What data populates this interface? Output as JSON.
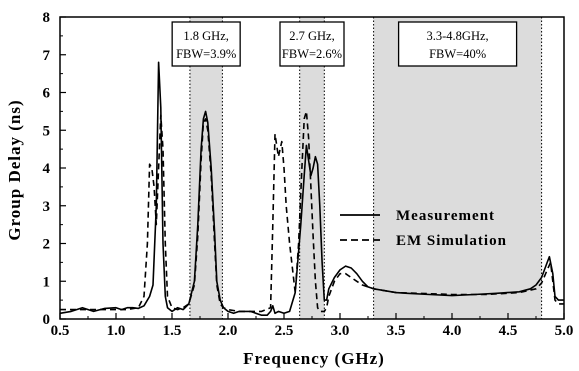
{
  "chart_data": {
    "type": "line",
    "xlabel": "Frequency (GHz)",
    "ylabel": "Group Delay (ns)",
    "xlim": [
      0.5,
      5.0
    ],
    "ylim": [
      0,
      8
    ],
    "xticks": [
      "0.5",
      "1.0",
      "1.5",
      "2.0",
      "2.5",
      "3.0",
      "3.5",
      "4.0",
      "4.5",
      "5.0"
    ],
    "yticks": [
      "0",
      "1",
      "2",
      "3",
      "4",
      "5",
      "6",
      "7",
      "8"
    ],
    "grid": false,
    "legend_position": "right",
    "passbands": [
      {
        "range": [
          1.66,
          1.95
        ],
        "label_line1": "1.8 GHz,",
        "label_line2": "FBW=3.9%"
      },
      {
        "range": [
          2.64,
          2.86
        ],
        "label_line1": "2.7 GHz,",
        "label_line2": "FBW=2.6%"
      },
      {
        "range": [
          3.3,
          4.8
        ],
        "label_line1": "3.3-4.8GHz,",
        "label_line2": "FBW=40%"
      }
    ],
    "band_fill_color": "#dcdcdc",
    "series": [
      {
        "name": "Measurement",
        "style": "solid",
        "x": [
          0.5,
          0.6,
          0.7,
          0.8,
          0.9,
          1.0,
          1.05,
          1.1,
          1.15,
          1.2,
          1.25,
          1.3,
          1.33,
          1.36,
          1.38,
          1.4,
          1.42,
          1.44,
          1.46,
          1.5,
          1.55,
          1.6,
          1.65,
          1.7,
          1.73,
          1.76,
          1.78,
          1.8,
          1.82,
          1.85,
          1.88,
          1.9,
          1.93,
          1.96,
          2.0,
          2.05,
          2.1,
          2.2,
          2.3,
          2.35,
          2.38,
          2.4,
          2.42,
          2.45,
          2.5,
          2.55,
          2.6,
          2.62,
          2.65,
          2.68,
          2.7,
          2.72,
          2.74,
          2.76,
          2.78,
          2.8,
          2.82,
          2.84,
          2.86,
          2.88,
          2.9,
          2.95,
          3.0,
          3.05,
          3.1,
          3.15,
          3.2,
          3.25,
          3.3,
          3.4,
          3.5,
          3.6,
          3.8,
          4.0,
          4.2,
          4.4,
          4.6,
          4.7,
          4.75,
          4.8,
          4.85,
          4.87,
          4.9,
          4.92,
          4.95,
          5.0
        ],
        "values": [
          0.15,
          0.2,
          0.3,
          0.2,
          0.28,
          0.3,
          0.25,
          0.3,
          0.3,
          0.28,
          0.35,
          0.6,
          0.9,
          3.0,
          6.8,
          5.6,
          2.0,
          0.6,
          0.3,
          0.2,
          0.3,
          0.25,
          0.4,
          1.0,
          2.5,
          4.5,
          5.3,
          5.5,
          5.2,
          4.0,
          2.3,
          1.0,
          0.5,
          0.3,
          0.2,
          0.15,
          0.2,
          0.2,
          0.1,
          0.1,
          0.2,
          0.35,
          0.15,
          0.2,
          0.15,
          0.2,
          0.7,
          1.4,
          2.5,
          3.8,
          4.6,
          4.2,
          3.8,
          4.0,
          4.3,
          4.1,
          3.0,
          1.5,
          0.5,
          0.5,
          0.8,
          1.1,
          1.3,
          1.4,
          1.35,
          1.2,
          1.0,
          0.85,
          0.8,
          0.75,
          0.7,
          0.68,
          0.65,
          0.62,
          0.65,
          0.68,
          0.72,
          0.8,
          0.9,
          1.1,
          1.5,
          1.65,
          1.2,
          0.6,
          0.5,
          0.5
        ]
      },
      {
        "name": "EM Simulation",
        "style": "dashed",
        "x": [
          0.5,
          0.6,
          0.7,
          0.8,
          0.9,
          1.0,
          1.1,
          1.2,
          1.25,
          1.28,
          1.3,
          1.32,
          1.34,
          1.36,
          1.38,
          1.4,
          1.42,
          1.44,
          1.46,
          1.5,
          1.55,
          1.6,
          1.65,
          1.7,
          1.73,
          1.76,
          1.78,
          1.8,
          1.82,
          1.85,
          1.88,
          1.9,
          1.93,
          1.96,
          2.0,
          2.1,
          2.2,
          2.3,
          2.38,
          2.4,
          2.42,
          2.45,
          2.48,
          2.5,
          2.52,
          2.55,
          2.6,
          2.63,
          2.66,
          2.68,
          2.7,
          2.72,
          2.74,
          2.76,
          2.78,
          2.8,
          2.82,
          2.84,
          2.86,
          2.88,
          2.9,
          2.95,
          3.0,
          3.05,
          3.1,
          3.15,
          3.2,
          3.3,
          3.4,
          3.5,
          3.7,
          4.0,
          4.3,
          4.6,
          4.75,
          4.8,
          4.85,
          4.88,
          4.9,
          4.92,
          4.95,
          5.0
        ],
        "values": [
          0.25,
          0.25,
          0.25,
          0.25,
          0.25,
          0.25,
          0.25,
          0.3,
          0.6,
          2.0,
          4.1,
          4.0,
          3.5,
          2.5,
          4.0,
          5.4,
          4.5,
          2.0,
          0.6,
          0.3,
          0.25,
          0.3,
          0.4,
          0.9,
          2.2,
          4.2,
          5.2,
          5.3,
          5.0,
          3.8,
          2.0,
          0.9,
          0.4,
          0.3,
          0.25,
          0.2,
          0.2,
          0.2,
          0.3,
          2.5,
          4.9,
          4.3,
          4.7,
          4.0,
          3.0,
          2.0,
          0.7,
          2.0,
          4.0,
          5.3,
          5.5,
          4.8,
          3.5,
          2.2,
          1.0,
          0.3,
          0.2,
          0.2,
          0.2,
          0.3,
          0.6,
          1.0,
          1.2,
          1.2,
          1.1,
          1.0,
          0.9,
          0.8,
          0.75,
          0.7,
          0.68,
          0.65,
          0.65,
          0.7,
          0.8,
          0.95,
          1.3,
          1.5,
          1.0,
          0.5,
          0.4,
          0.4
        ]
      }
    ]
  }
}
